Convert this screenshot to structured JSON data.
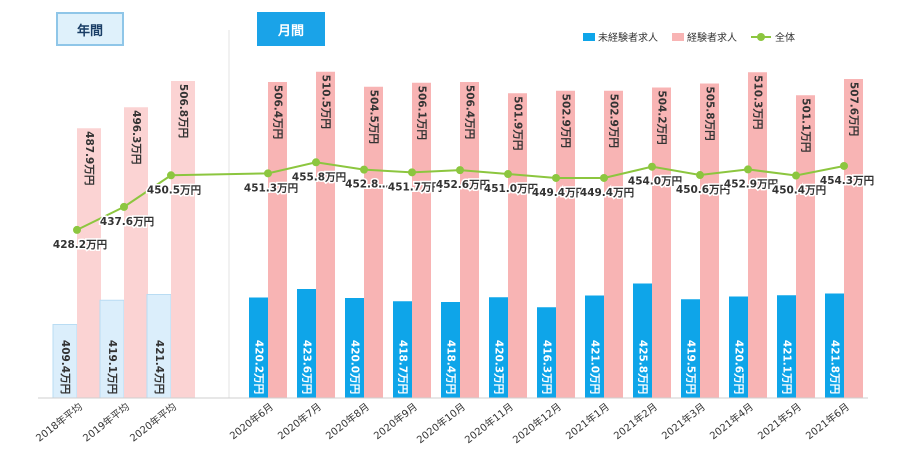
{
  "tabs": {
    "annual": "年間",
    "monthly": "月間"
  },
  "legend": [
    {
      "label": "未経験者求人",
      "color": "#0ea5e9"
    },
    {
      "label": "経験者求人",
      "color": "#f8b4b4"
    },
    {
      "label": "全体",
      "color": "#8cc63f"
    }
  ],
  "chart_data": {
    "type": "bar",
    "categories": [
      "2018年平均",
      "2019年平均",
      "2020年平均",
      "2020年6月",
      "2020年7月",
      "2020年8月",
      "2020年9月",
      "2020年10月",
      "2020年11月",
      "2020年12月",
      "2021年1月",
      "2021年2月",
      "2021年3月",
      "2021年4月",
      "2021年5月",
      "2021年6月"
    ],
    "series": [
      {
        "name": "未経験者求人",
        "type": "bar",
        "values": [
          409.4,
          419.1,
          421.4,
          420.2,
          423.6,
          420.0,
          418.7,
          418.4,
          420.3,
          416.3,
          421.0,
          425.8,
          419.5,
          420.6,
          421.1,
          421.8
        ],
        "labels": [
          "409.4万円",
          "419.1万円",
          "421.4万円",
          "420.2万円",
          "423.6万円",
          "420.0万円",
          "418.7万円",
          "418.4万円",
          "420.3万円",
          "416.3万円",
          "421.0万円",
          "425.8万円",
          "419.5万円",
          "420.6万円",
          "421.1万円",
          "421.8万円"
        ]
      },
      {
        "name": "経験者求人",
        "type": "bar",
        "values": [
          487.9,
          496.3,
          506.8,
          506.4,
          510.5,
          504.5,
          506.1,
          506.4,
          501.9,
          502.9,
          502.9,
          504.2,
          505.8,
          510.3,
          501.1,
          507.6
        ],
        "labels": [
          "487.9万円",
          "496.3万円",
          "506.8万円",
          "506.4万円",
          "510.5万円",
          "504.5万円",
          "506.1万円",
          "506.4万円",
          "501.9万円",
          "502.9万円",
          "502.9万円",
          "504.2万円",
          "505.8万円",
          "510.3万円",
          "501.1万円",
          "507.6万円"
        ]
      },
      {
        "name": "全体",
        "type": "line",
        "values": [
          428.2,
          437.6,
          450.5,
          451.3,
          455.8,
          452.8,
          451.7,
          452.6,
          451.0,
          449.4,
          449.4,
          454.0,
          450.6,
          452.9,
          450.4,
          454.3
        ],
        "labels": [
          "428.2万円",
          "437.6万円",
          "450.5万円",
          "451.3万円",
          "455.8万円",
          "452.8…",
          "451.7万円",
          "452.6万円",
          "451.0万円",
          "449.4万円",
          "449.4万円",
          "454.0万円",
          "450.6万円",
          "452.9万円",
          "450.4万円",
          "454.3万円"
        ]
      }
    ],
    "annual_count": 3,
    "colors": {
      "unexp_annual": "#dbeefb",
      "unexp_annual_border": "#b9dcf3",
      "exp_annual": "#fbd3d3",
      "unexp_monthly": "#0ea5e9",
      "exp_monthly": "#f8b4b4",
      "line": "#8cc63f"
    }
  }
}
